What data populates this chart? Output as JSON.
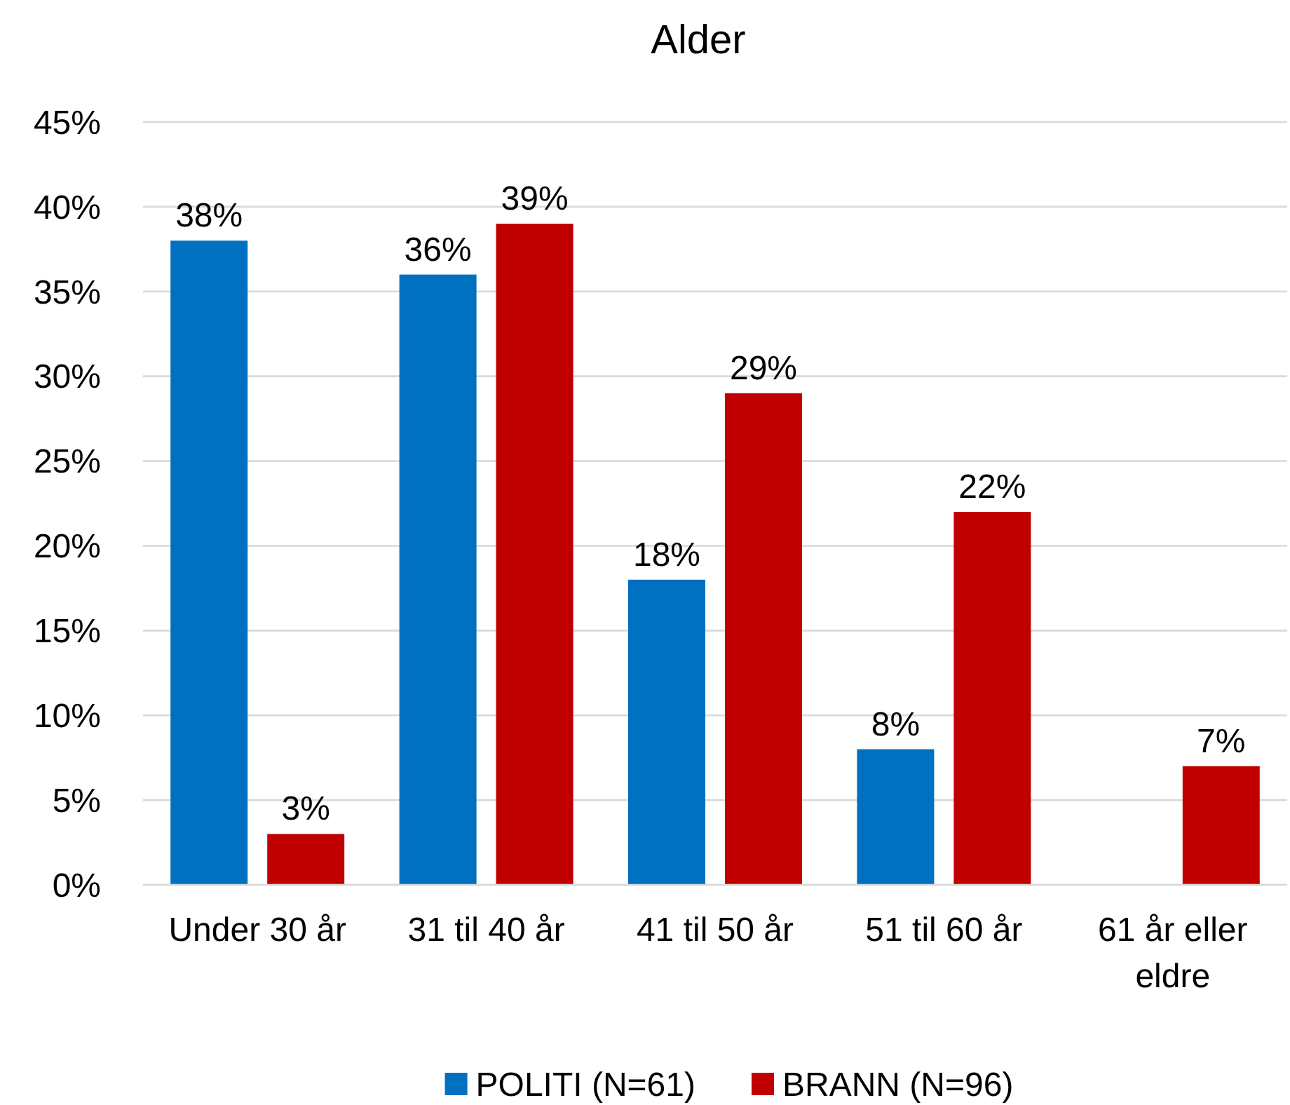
{
  "chart_data": {
    "type": "bar",
    "title": "Alder",
    "categories": [
      "Under 30 år",
      "31 til 40 år",
      "41 til 50 år",
      "51 til 60 år",
      "61 år eller eldre"
    ],
    "series": [
      {
        "name": "POLITI (N=61)",
        "color": "#0070c0",
        "values": [
          38,
          36,
          18,
          8,
          null
        ],
        "value_labels": [
          "38%",
          "36%",
          "18%",
          "8%",
          null
        ]
      },
      {
        "name": "BRANN (N=96)",
        "color": "#c00000",
        "values": [
          3,
          39,
          29,
          22,
          7
        ],
        "value_labels": [
          "3%",
          "39%",
          "29%",
          "22%",
          "7%"
        ]
      }
    ],
    "ylim": [
      0,
      45
    ],
    "yticks": [
      {
        "value": 0,
        "label": "0%"
      },
      {
        "value": 5,
        "label": "5%"
      },
      {
        "value": 10,
        "label": "10%"
      },
      {
        "value": 15,
        "label": "15%"
      },
      {
        "value": 20,
        "label": "20%"
      },
      {
        "value": 25,
        "label": "25%"
      },
      {
        "value": 30,
        "label": "30%"
      },
      {
        "value": 35,
        "label": "35%"
      },
      {
        "value": 40,
        "label": "40%"
      },
      {
        "value": 45,
        "label": "45%"
      }
    ],
    "grid": "y",
    "legend": "bottom"
  }
}
